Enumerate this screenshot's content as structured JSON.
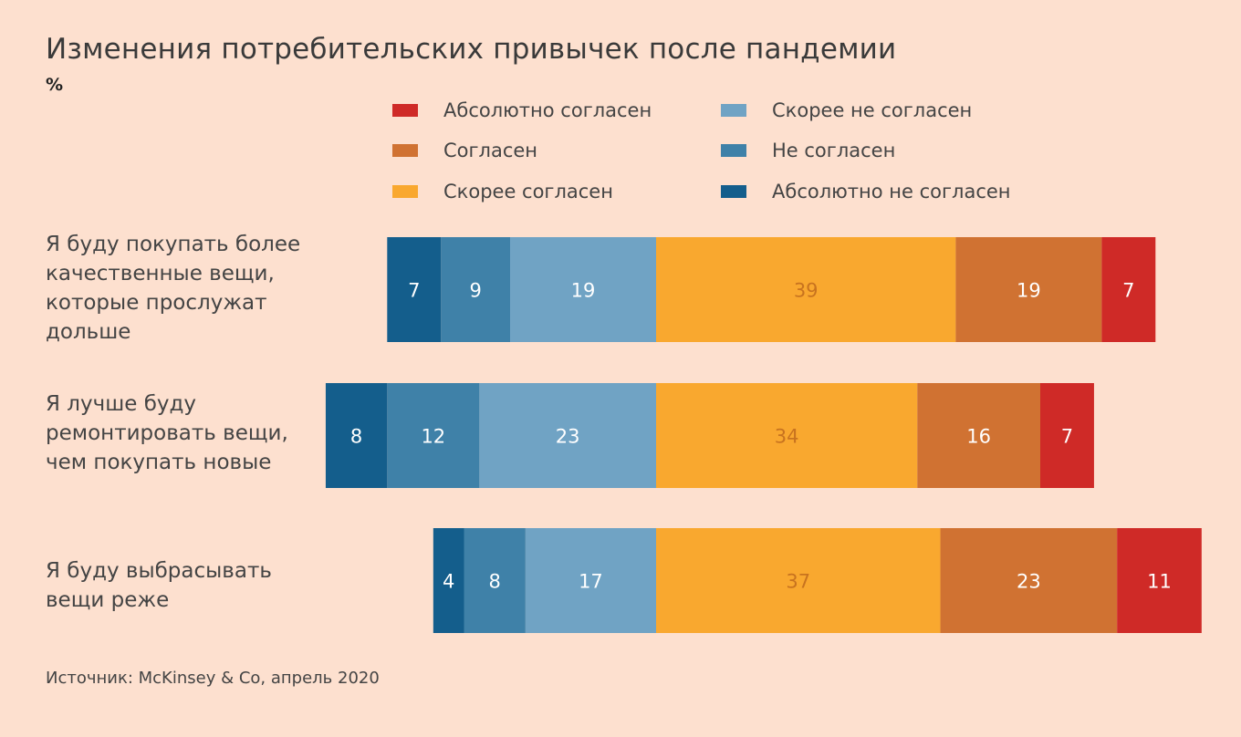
{
  "title": "Изменения потребительских привычек после пандемии",
  "unit": "%",
  "source": "Источник: McKinsey & Co, апрель 2020",
  "legend": [
    {
      "label": "Абсолютно согласен",
      "color": "#cf2a27",
      "icon": "square-swatch"
    },
    {
      "label": "Согласен",
      "color": "#d07232",
      "icon": "square-swatch"
    },
    {
      "label": "Скорее согласен",
      "color": "#f9a82f",
      "icon": "square-swatch"
    },
    {
      "label": "Скорее не согласен",
      "color": "#70a3c4",
      "icon": "square-swatch"
    },
    {
      "label": "Не согласен",
      "color": "#3f81a8",
      "icon": "square-swatch"
    },
    {
      "label": "Абсолютно не согласен",
      "color": "#145e8c",
      "icon": "square-swatch"
    }
  ],
  "chart_data": {
    "type": "bar",
    "orientation": "horizontal",
    "stacked": "diverging",
    "categories": [
      "Я буду покупать более\nкачественные вещи,\nкоторые прослужат\nдольше",
      "Я лучше буду\nремонтировать вещи,\nчем покупать новые",
      "Я буду выбрасывать\nвещи реже"
    ],
    "series": [
      {
        "name": "Абсолютно не согласен",
        "side": "negative",
        "color": "#145e8c",
        "label_color": "#ffffff",
        "values": [
          7,
          8,
          4
        ]
      },
      {
        "name": "Не согласен",
        "side": "negative",
        "color": "#3f81a8",
        "label_color": "#ffffff",
        "values": [
          9,
          12,
          8
        ]
      },
      {
        "name": "Скорее не согласен",
        "side": "negative",
        "color": "#70a3c4",
        "label_color": "#ffffff",
        "values": [
          19,
          23,
          17
        ]
      },
      {
        "name": "Скорее согласен",
        "side": "positive",
        "color": "#f9a82f",
        "label_color": "#c8731f",
        "values": [
          39,
          34,
          37
        ]
      },
      {
        "name": "Согласен",
        "side": "positive",
        "color": "#d07232",
        "label_color": "#ffffff",
        "values": [
          19,
          16,
          23
        ]
      },
      {
        "name": "Абсолютно согласен",
        "side": "positive",
        "color": "#cf2a27",
        "label_color": "#ffffff",
        "values": [
          7,
          7,
          11
        ]
      }
    ],
    "grid": false,
    "legend_position": "top"
  }
}
